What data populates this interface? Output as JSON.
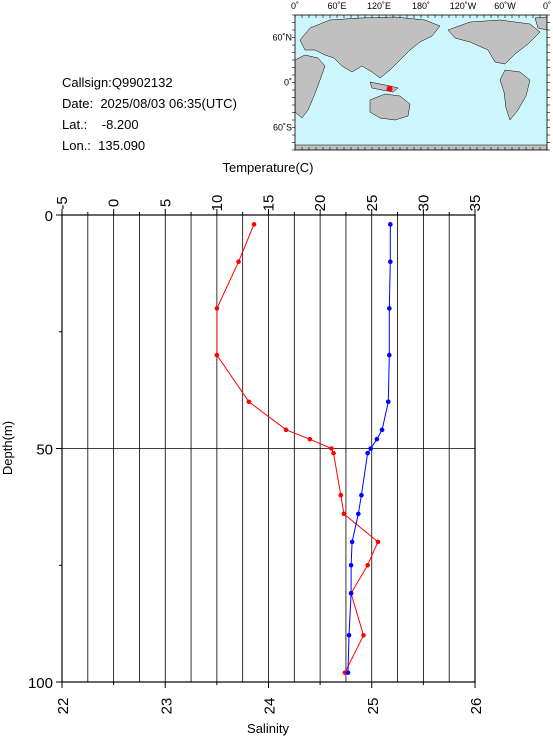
{
  "station": {
    "callsign_label": "Callsign:",
    "callsign": "Q9902132",
    "date_label": "Date:",
    "date": "2025/08/03 06:35(UTC)",
    "lat_label": "Lat.:",
    "lat": "-8.200",
    "lon_label": "Lon.:",
    "lon": "135.090"
  },
  "map": {
    "top_labels": [
      "0˚",
      "60˚E",
      "120˚E",
      "180˚",
      "120˚W",
      "60˚W",
      "0˚"
    ],
    "lat_labels": [
      "60˚N",
      "0˚",
      "60˚S"
    ],
    "ocean_color": "#ccf5fc",
    "land_color": "#c0c0c0",
    "marker_color": "#ff0000",
    "marker_lon": 135.09,
    "marker_lat": -8.2
  },
  "chart_data": {
    "type": "line",
    "ylabel": "Depth(m)",
    "ylim": [
      100,
      0
    ],
    "yticks": [
      0,
      50,
      100
    ],
    "top_axis": {
      "label": "Temperature(C)",
      "lim": [
        -5,
        35
      ],
      "ticks": [
        "-5",
        "0",
        "5",
        "10",
        "15",
        "20",
        "25",
        "30",
        "35"
      ]
    },
    "bottom_axis": {
      "label": "Salinity",
      "lim": [
        22,
        26
      ],
      "ticks": [
        "22",
        "23",
        "24",
        "25",
        "26"
      ]
    },
    "grid": "vertical lines every 2.5 C and horizontal line at 50 m",
    "series": [
      {
        "color": "#ff0000",
        "axis": "top",
        "points": [
          {
            "x": 13.6,
            "y": 2
          },
          {
            "x": 12.1,
            "y": 10
          },
          {
            "x": 10.0,
            "y": 20
          },
          {
            "x": 10.0,
            "y": 30
          },
          {
            "x": 13.1,
            "y": 40
          },
          {
            "x": 16.7,
            "y": 46
          },
          {
            "x": 19.0,
            "y": 48
          },
          {
            "x": 21.1,
            "y": 50
          },
          {
            "x": 21.3,
            "y": 51
          },
          {
            "x": 22.0,
            "y": 60
          },
          {
            "x": 22.3,
            "y": 64
          },
          {
            "x": 25.6,
            "y": 70
          },
          {
            "x": 24.6,
            "y": 75
          },
          {
            "x": 23.0,
            "y": 81
          },
          {
            "x": 24.2,
            "y": 90
          },
          {
            "x": 22.4,
            "y": 98
          }
        ]
      },
      {
        "color": "#0000ff",
        "axis": "bottom",
        "points": [
          {
            "x": 25.18,
            "y": 2
          },
          {
            "x": 25.18,
            "y": 10
          },
          {
            "x": 25.17,
            "y": 20
          },
          {
            "x": 25.17,
            "y": 30
          },
          {
            "x": 25.16,
            "y": 40
          },
          {
            "x": 25.1,
            "y": 46
          },
          {
            "x": 25.05,
            "y": 48
          },
          {
            "x": 24.99,
            "y": 50
          },
          {
            "x": 24.96,
            "y": 51
          },
          {
            "x": 24.9,
            "y": 60
          },
          {
            "x": 24.87,
            "y": 64
          },
          {
            "x": 24.81,
            "y": 70
          },
          {
            "x": 24.8,
            "y": 75
          },
          {
            "x": 24.8,
            "y": 81
          },
          {
            "x": 24.78,
            "y": 90
          },
          {
            "x": 24.77,
            "y": 98
          }
        ]
      }
    ]
  }
}
